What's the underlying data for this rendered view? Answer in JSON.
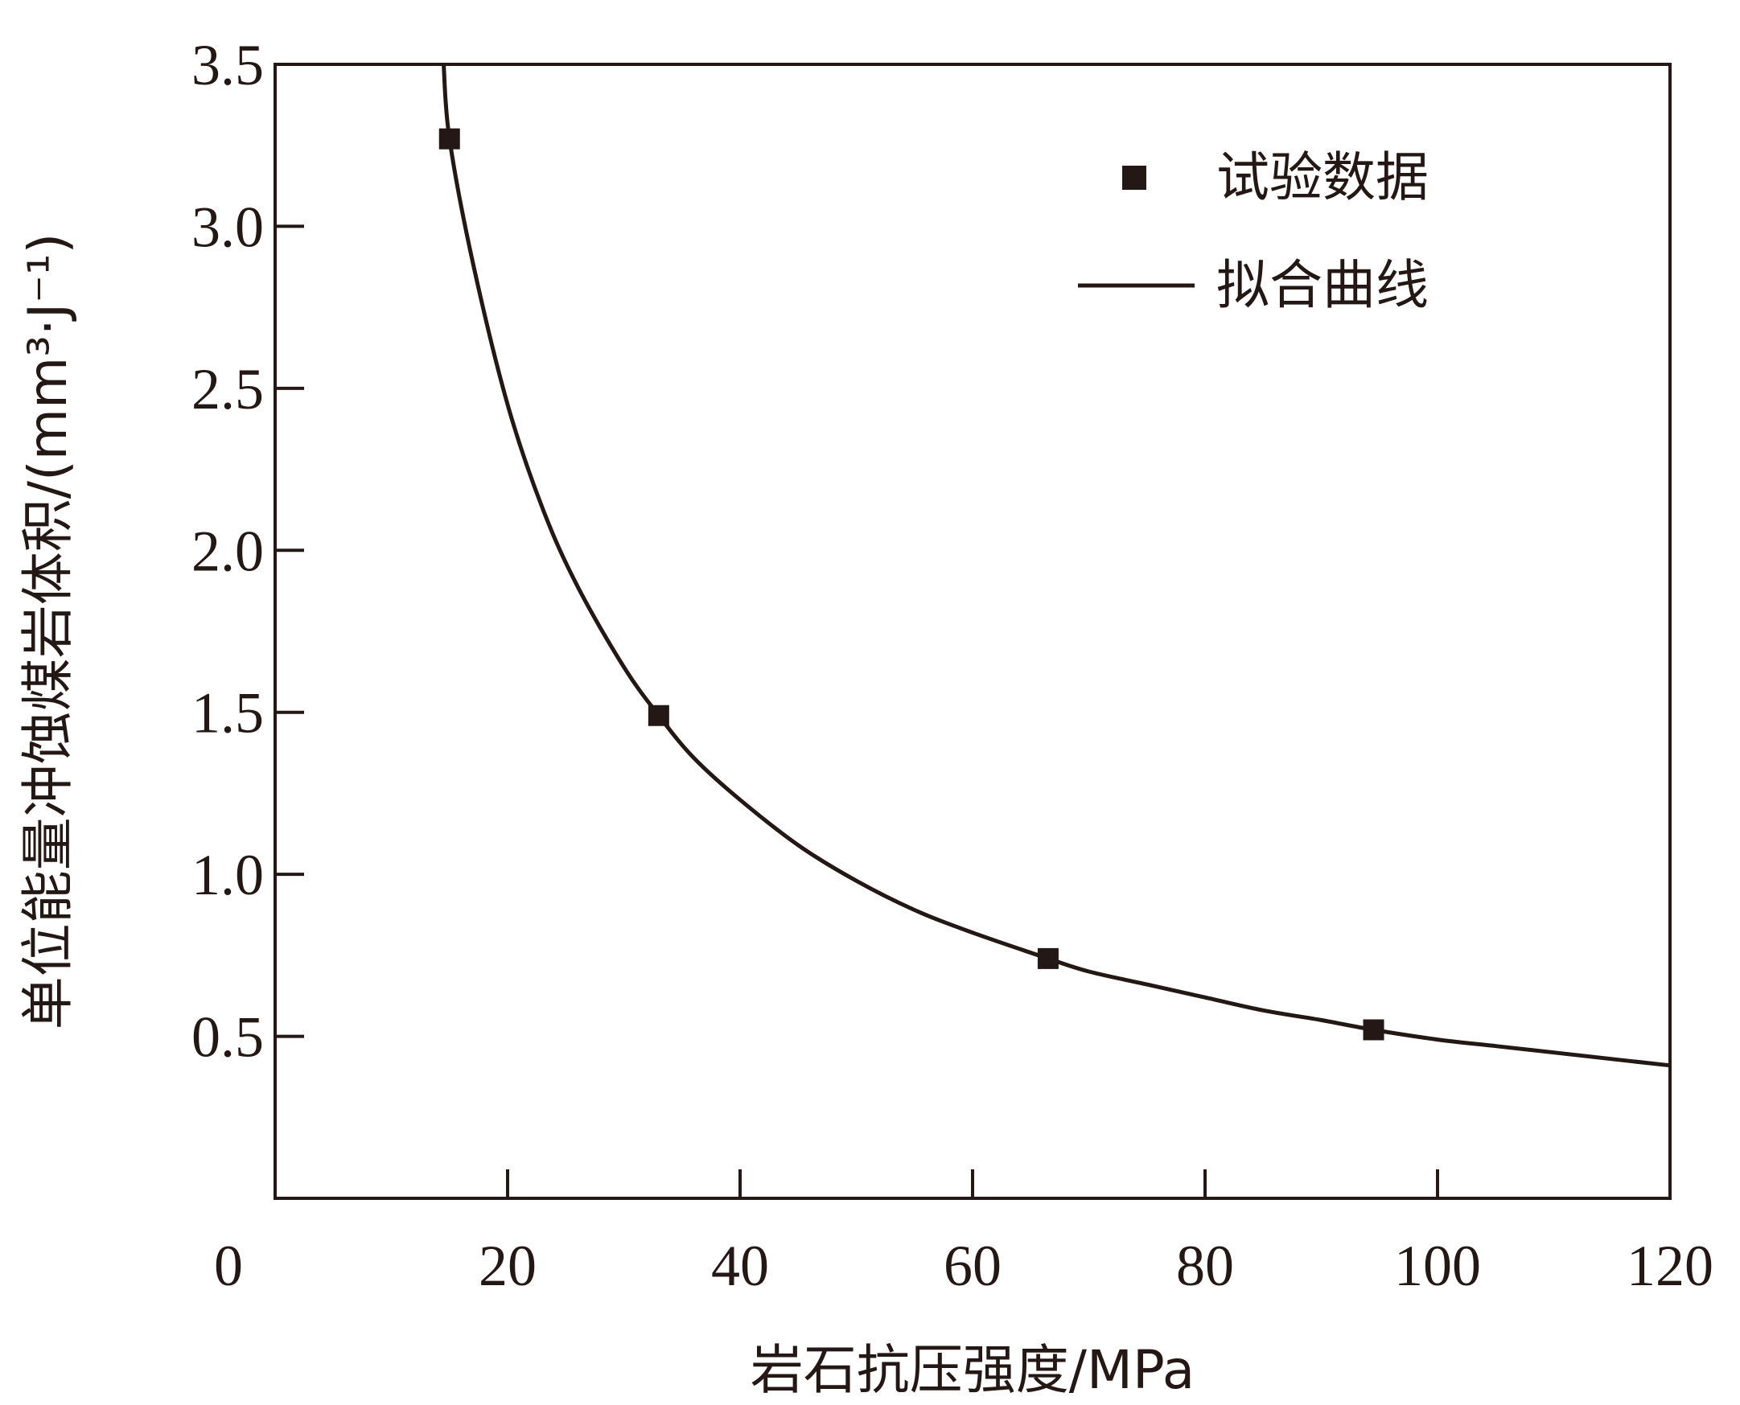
{
  "chart_data": {
    "type": "scatter",
    "title": "",
    "xlabel": "岩石抗压强度/MPa",
    "ylabel": "单位能量冲蚀煤岩体积/(mm³·J⁻¹)",
    "xlim": [
      0,
      120
    ],
    "ylim": [
      0,
      3.5
    ],
    "x_ticks": [
      0,
      20,
      40,
      60,
      80,
      100,
      120
    ],
    "x_tick_labels": [
      "0",
      "20",
      "40",
      "60",
      "80",
      "100",
      "120"
    ],
    "y_ticks": [
      0.5,
      1.0,
      1.5,
      2.0,
      2.5,
      3.0,
      3.5
    ],
    "y_tick_labels": [
      "0.5",
      "1.0",
      "1.5",
      "2.0",
      "2.5",
      "3.0",
      "3.5"
    ],
    "grid": false,
    "legend_position": "top-right",
    "series": [
      {
        "name": "试验数据",
        "kind": "scatter",
        "marker": "square",
        "x": [
          15,
          33,
          66.5,
          94.5
        ],
        "y": [
          3.27,
          1.49,
          0.74,
          0.52
        ]
      },
      {
        "name": "拟合曲线",
        "kind": "line",
        "x": [
          14.5,
          15,
          17,
          20,
          23,
          26,
          30,
          33,
          36,
          40,
          45,
          50,
          55,
          60,
          66.5,
          70,
          75,
          80,
          85,
          90,
          94.5,
          100,
          105,
          110,
          115,
          120
        ],
        "y": [
          3.5,
          3.27,
          2.89,
          2.45,
          2.13,
          1.89,
          1.64,
          1.49,
          1.36,
          1.23,
          1.09,
          0.98,
          0.89,
          0.82,
          0.74,
          0.7,
          0.66,
          0.62,
          0.58,
          0.55,
          0.52,
          0.49,
          0.47,
          0.45,
          0.43,
          0.41
        ]
      }
    ],
    "colors": {
      "ink": "#231815",
      "background": "#ffffff"
    }
  }
}
